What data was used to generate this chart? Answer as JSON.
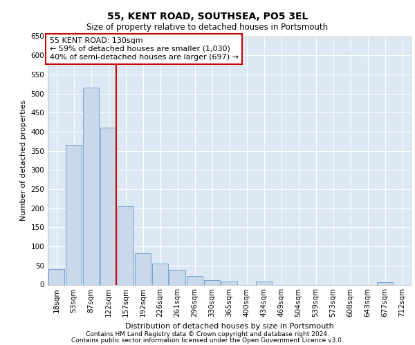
{
  "title_line1": "55, KENT ROAD, SOUTHSEA, PO5 3EL",
  "title_line2": "Size of property relative to detached houses in Portsmouth",
  "xlabel": "Distribution of detached houses by size in Portsmouth",
  "ylabel": "Number of detached properties",
  "footnote1": "Contains HM Land Registry data © Crown copyright and database right 2024.",
  "footnote2": "Contains public sector information licensed under the Open Government Licence v3.0.",
  "annotation_line1": "55 KENT ROAD: 130sqm",
  "annotation_line2": "← 59% of detached houses are smaller (1,030)",
  "annotation_line3": "40% of semi-detached houses are larger (697) →",
  "bar_color": "#c9d9ea",
  "bar_edge_color": "#6699cc",
  "bg_color": "#dce9f5",
  "vline_color": "#cc0000",
  "vline_x": 3,
  "categories": [
    "18sqm",
    "53sqm",
    "87sqm",
    "122sqm",
    "157sqm",
    "192sqm",
    "226sqm",
    "261sqm",
    "296sqm",
    "330sqm",
    "365sqm",
    "400sqm",
    "434sqm",
    "469sqm",
    "504sqm",
    "539sqm",
    "573sqm",
    "608sqm",
    "643sqm",
    "677sqm",
    "712sqm"
  ],
  "values": [
    40,
    365,
    515,
    410,
    205,
    83,
    55,
    38,
    22,
    12,
    8,
    0,
    8,
    0,
    0,
    0,
    0,
    0,
    0,
    7,
    0
  ],
  "ylim": [
    0,
    650
  ],
  "yticks": [
    0,
    50,
    100,
    150,
    200,
    250,
    300,
    350,
    400,
    450,
    500,
    550,
    600,
    650
  ],
  "title_fontsize": 10,
  "subtitle_fontsize": 8.5,
  "footnote_fontsize": 6.5,
  "ylabel_fontsize": 8,
  "xlabel_fontsize": 8,
  "tick_fontsize": 7.5,
  "annot_fontsize": 8
}
